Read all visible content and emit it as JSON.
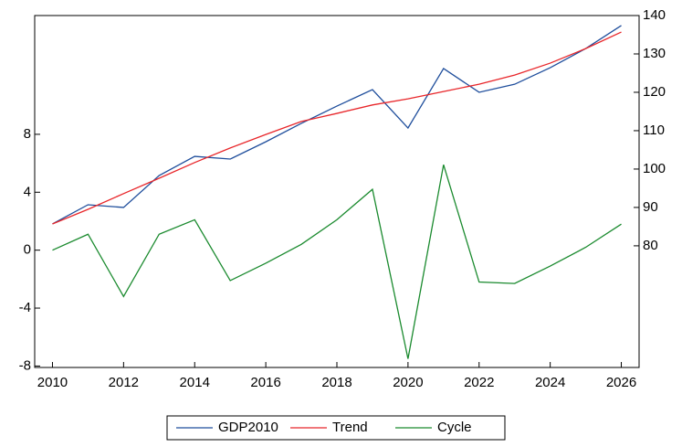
{
  "chart_data": {
    "type": "line",
    "x": [
      2010,
      2011,
      2012,
      2013,
      2014,
      2015,
      2016,
      2017,
      2018,
      2019,
      2020,
      2021,
      2022,
      2023,
      2024,
      2025,
      2026
    ],
    "series": [
      {
        "name": "GDP2010",
        "color": "#1f4e9c",
        "axis": "y2",
        "values": [
          85.7,
          90.7,
          90,
          98.3,
          103.3,
          102.6,
          107.1,
          111.9,
          116.4,
          120.7,
          110.7,
          126.2,
          120,
          122.1,
          126.4,
          131.4,
          137.4
        ]
      },
      {
        "name": "Trend",
        "color": "#e8262a",
        "axis": "y2",
        "values": [
          85.7,
          89.5,
          93.6,
          97.6,
          101.7,
          105.5,
          109,
          112.4,
          114.5,
          116.7,
          118.3,
          120.2,
          122.1,
          124.5,
          127.6,
          131.4,
          135.7
        ]
      },
      {
        "name": "Cycle",
        "color": "#1a8a2e",
        "axis": "y",
        "values": [
          0,
          1.1,
          -3.2,
          1.1,
          2.1,
          -2.1,
          -0.9,
          0.4,
          2.1,
          4.2,
          -7.5,
          5.9,
          -2.2,
          -2.3,
          -1.1,
          0.2,
          1.8
        ]
      }
    ],
    "xlim": [
      2009.5,
      2026.5
    ],
    "xticks": [
      2010,
      2012,
      2014,
      2016,
      2018,
      2020,
      2022,
      2024,
      2026
    ],
    "ylim": [
      -8.1,
      16.2
    ],
    "yticks": [
      -8,
      -4,
      0,
      4,
      8
    ],
    "y2lim": [
      48.3,
      140
    ],
    "y2ticks": [
      80,
      90,
      100,
      110,
      120,
      130,
      140
    ],
    "legend": "bottom"
  }
}
